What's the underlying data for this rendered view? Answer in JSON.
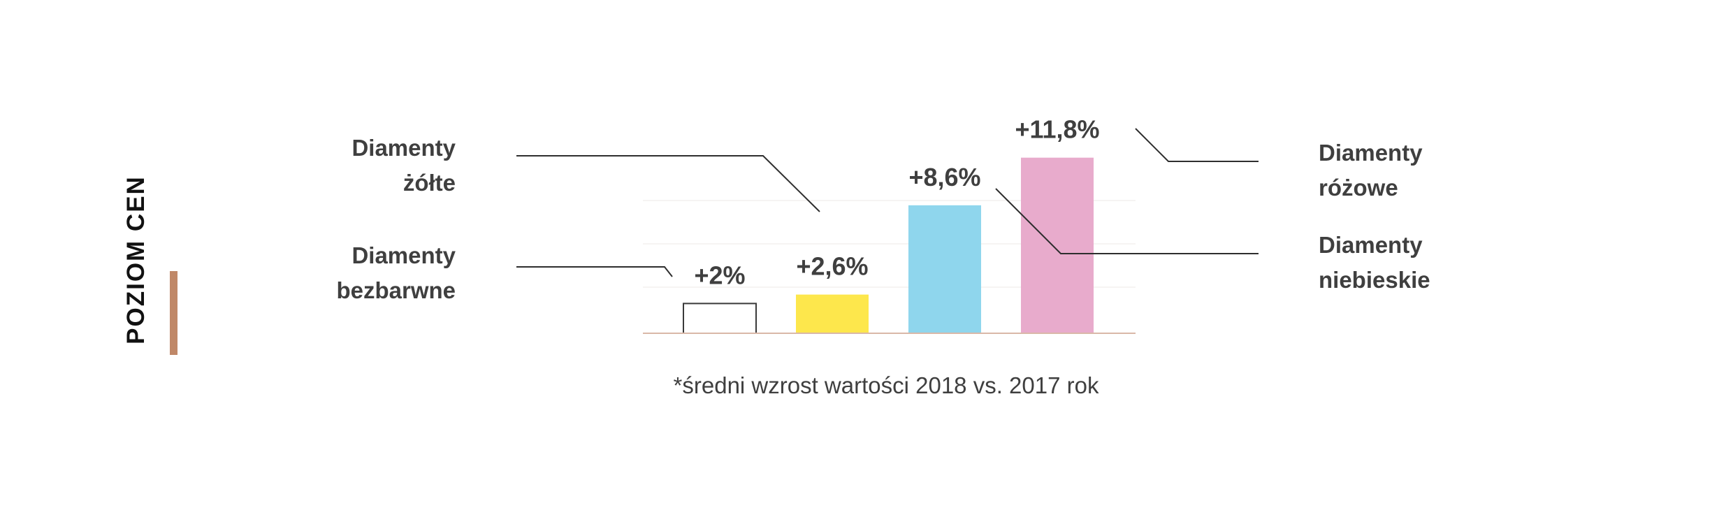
{
  "axis_title": "POZIOM CEN",
  "footnote": "*średni wzrost wartości 2018 vs. 2017 rok",
  "colors": {
    "text": "#3f3f3f",
    "axis_title": "#111111",
    "accent_bar": "#c08868",
    "baseline": "#d9b8a8",
    "leader": "#2e2e2e",
    "bar_outline": "#3a3a3a"
  },
  "chart_data": {
    "type": "bar",
    "categories": [
      "Diamenty bezbarwne",
      "Diamenty żółte",
      "Diamenty niebieskie",
      "Diamenty różowe"
    ],
    "values": [
      2,
      2.6,
      8.6,
      11.8
    ],
    "value_labels": [
      "+2%",
      "+2,6%",
      "+8,6%",
      "+11,8%"
    ],
    "category_labels": [
      [
        "Diamenty",
        "bezbarwne"
      ],
      [
        "Diamenty",
        "żółte"
      ],
      [
        "Diamenty",
        "niebieskie"
      ],
      [
        "Diamenty",
        "różowe"
      ]
    ],
    "colors": [
      "#ffffff",
      "#fde74c",
      "#8fd6ed",
      "#e8abcc"
    ],
    "ylabel": "POZIOM CEN",
    "xlabel": "",
    "grid": true
  }
}
